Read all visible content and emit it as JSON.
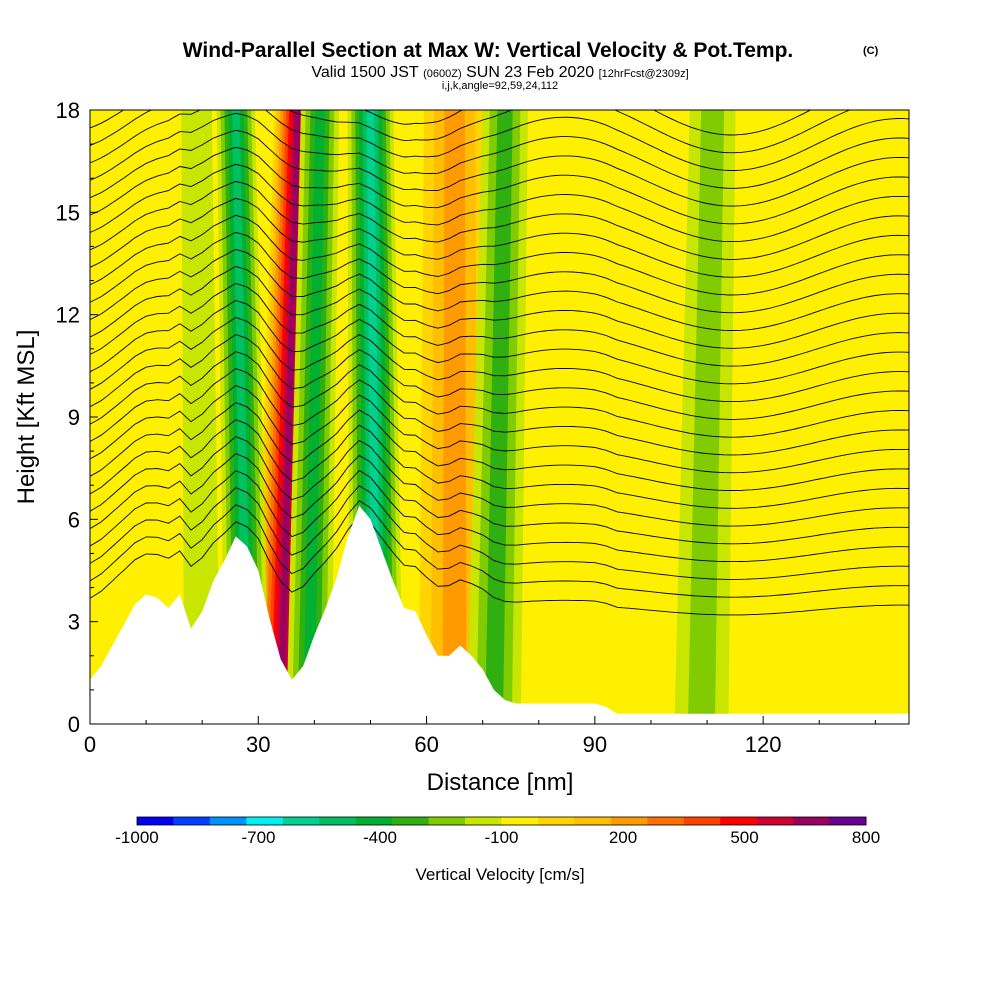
{
  "title": {
    "main": "Wind-Parallel Section at Max W: Vertical Velocity & Pot.Temp.",
    "copyright": "(C)",
    "valid_a": "Valid 1500 JST",
    "valid_zulu": "(0600Z)",
    "valid_b": "SUN 23 Feb 2020",
    "forecast": "[12hrFcst@2309z]",
    "indices": "i,j,k,angle=92,59,24,112"
  },
  "chart_data": {
    "type": "heatmap",
    "xlabel": "Distance [nm]",
    "ylabel": "Height [Kft MSL]",
    "xlim": [
      0,
      146
    ],
    "ylim": [
      0,
      18
    ],
    "x_ticks": [
      "0",
      "30",
      "60",
      "90",
      "120"
    ],
    "x_tick_values": [
      0,
      30,
      60,
      90,
      120
    ],
    "y_ticks": [
      "0",
      "3",
      "6",
      "9",
      "12",
      "15",
      "18"
    ],
    "y_tick_values": [
      0,
      3,
      6,
      9,
      12,
      15,
      18
    ],
    "terrain": {
      "x": [
        0,
        2,
        4,
        6,
        8,
        10,
        12,
        14,
        16,
        18,
        20,
        22,
        24,
        26,
        28,
        30,
        32,
        34,
        36,
        38,
        40,
        42,
        44,
        46,
        48,
        50,
        52,
        54,
        56,
        58,
        60,
        62,
        64,
        66,
        68,
        70,
        72,
        74,
        76,
        78,
        80,
        82,
        84,
        86,
        88,
        90,
        92,
        94,
        96,
        98,
        100,
        102,
        104,
        106,
        108,
        110,
        112,
        114,
        116,
        118,
        120,
        122,
        124,
        126,
        128,
        130,
        132,
        134,
        136,
        138,
        140,
        142,
        144,
        146
      ],
      "kft": [
        1.3,
        1.7,
        2.3,
        2.9,
        3.5,
        3.8,
        3.7,
        3.4,
        3.8,
        2.8,
        3.3,
        4.2,
        4.8,
        5.5,
        5.2,
        4.5,
        3.1,
        1.9,
        1.3,
        1.7,
        2.6,
        3.4,
        4.3,
        5.5,
        6.4,
        6.0,
        5.1,
        4.2,
        3.4,
        3.3,
        2.6,
        2.0,
        2.0,
        2.3,
        2.0,
        1.6,
        1.0,
        0.7,
        0.6,
        0.6,
        0.6,
        0.6,
        0.6,
        0.6,
        0.6,
        0.6,
        0.5,
        0.3,
        0.3,
        0.3,
        0.3,
        0.3,
        0.3,
        0.3,
        0.3,
        0.3,
        0.3,
        0.3,
        0.3,
        0.3,
        0.3,
        0.3,
        0.3,
        0.3,
        0.3,
        0.3,
        0.3,
        0.3,
        0.3,
        0.3,
        0.3,
        0.3,
        0.3,
        0.3
      ]
    },
    "vertical_velocity_bands": [
      {
        "x_base": 34,
        "x_top": 37,
        "width": 3.0,
        "value": 800
      },
      {
        "x_base": 28,
        "x_top": 26,
        "width": 2.5,
        "value": -450
      },
      {
        "x_base": 39,
        "x_top": 41,
        "width": 2.5,
        "value": -350
      },
      {
        "x_base": 51,
        "x_top": 50,
        "width": 3.0,
        "value": -550
      },
      {
        "x_base": 65,
        "x_top": 65,
        "width": 4.0,
        "value": 300
      },
      {
        "x_base": 72,
        "x_top": 74,
        "width": 3.0,
        "value": -300
      },
      {
        "x_base": 109,
        "x_top": 111,
        "width": 3.0,
        "value": -200
      },
      {
        "x_base": 20,
        "x_top": 19,
        "width": 2.0,
        "value": -100
      }
    ],
    "potential_temperature_contours": {
      "label": "Pot.Temp.",
      "count": 28
    }
  },
  "colorbar": {
    "title": "Vertical Velocity [cm/s]",
    "labels": [
      "-1000",
      "-700",
      "-400",
      "-100",
      "200",
      "500",
      "800"
    ],
    "label_values": [
      -1000,
      -700,
      -400,
      -100,
      200,
      500,
      800
    ],
    "min": -1000,
    "max": 800,
    "step": 100,
    "colors": [
      "#0000f0",
      "#0040ff",
      "#0090ff",
      "#00f0f0",
      "#00d090",
      "#00c060",
      "#00b030",
      "#30b010",
      "#80cc00",
      "#c8e600",
      "#fff000",
      "#ffd400",
      "#ffbe00",
      "#ff9a00",
      "#ff7000",
      "#ff4000",
      "#ff0000",
      "#cc0033",
      "#990060",
      "#660090"
    ]
  }
}
